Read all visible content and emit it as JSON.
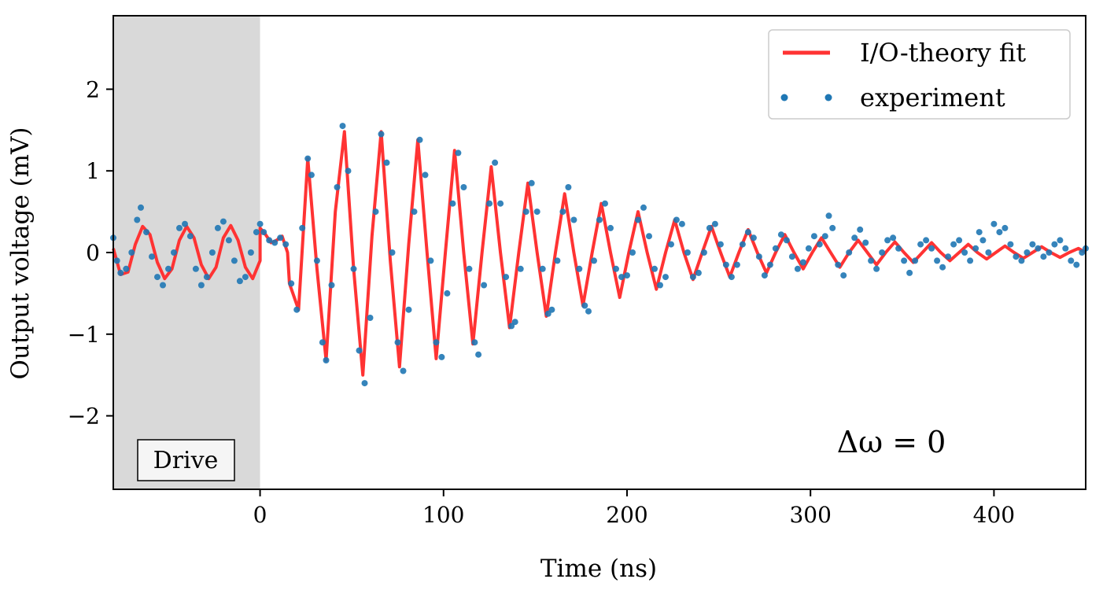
{
  "chart_data": {
    "type": "line",
    "title": "",
    "xlabel": "Time (ns)",
    "ylabel": "Output voltage (mV)",
    "xlim": [
      -80,
      450
    ],
    "ylim": [
      -2.9,
      2.9
    ],
    "xticks": [
      0,
      100,
      200,
      300,
      400
    ],
    "yticks": [
      -2,
      -1,
      0,
      1,
      2
    ],
    "grid": false,
    "legend_position": "top-right",
    "shaded_region": {
      "label": "Drive",
      "x_start": -80,
      "x_end": 0,
      "color": "#d9d9d9"
    },
    "annotation": {
      "text": "Δω = 0",
      "x": 365,
      "y": -2.3
    },
    "series": [
      {
        "name": "I/O-theory fit",
        "kind": "line",
        "color": "#ff3333",
        "points": [
          [
            -80,
            0.05
          ],
          [
            -76,
            -0.27
          ],
          [
            -72,
            -0.24
          ],
          [
            -68,
            0.1
          ],
          [
            -64,
            0.32
          ],
          [
            -60,
            0.22
          ],
          [
            -56,
            -0.12
          ],
          [
            -52,
            -0.32
          ],
          [
            -48,
            -0.2
          ],
          [
            -44,
            0.15
          ],
          [
            -40,
            0.32
          ],
          [
            -36,
            0.18
          ],
          [
            -32,
            -0.15
          ],
          [
            -28,
            -0.32
          ],
          [
            -24,
            -0.18
          ],
          [
            -20,
            0.18
          ],
          [
            -16,
            0.33
          ],
          [
            -12,
            0.15
          ],
          [
            -8,
            -0.18
          ],
          [
            -4,
            -0.32
          ],
          [
            0,
            -0.1
          ],
          [
            0,
            0.3
          ],
          [
            3,
            0.22
          ],
          [
            6,
            0.12
          ],
          [
            9,
            0.15
          ],
          [
            12,
            0.2
          ],
          [
            15,
            0.0
          ],
          [
            16,
            -0.38
          ],
          [
            21,
            -0.7
          ],
          [
            26,
            1.15
          ],
          [
            31,
            -0.2
          ],
          [
            36,
            -1.32
          ],
          [
            41,
            0.5
          ],
          [
            46,
            1.48
          ],
          [
            51,
            -0.2
          ],
          [
            56,
            -1.5
          ],
          [
            61,
            0.2
          ],
          [
            66,
            1.48
          ],
          [
            71,
            -0.1
          ],
          [
            76,
            -1.4
          ],
          [
            81,
            0.1
          ],
          [
            86,
            1.38
          ],
          [
            91,
            0.0
          ],
          [
            96,
            -1.3
          ],
          [
            101,
            0.0
          ],
          [
            106,
            1.25
          ],
          [
            111,
            0.0
          ],
          [
            116,
            -1.12
          ],
          [
            121,
            0.0
          ],
          [
            126,
            1.05
          ],
          [
            131,
            0.0
          ],
          [
            136,
            -0.92
          ],
          [
            141,
            0.0
          ],
          [
            146,
            0.85
          ],
          [
            151,
            0.0
          ],
          [
            156,
            -0.78
          ],
          [
            161,
            0.0
          ],
          [
            166,
            0.72
          ],
          [
            171,
            0.0
          ],
          [
            176,
            -0.65
          ],
          [
            181,
            0.0
          ],
          [
            186,
            0.6
          ],
          [
            191,
            0.0
          ],
          [
            196,
            -0.55
          ],
          [
            201,
            0.0
          ],
          [
            206,
            0.5
          ],
          [
            211,
            0.0
          ],
          [
            216,
            -0.45
          ],
          [
            221,
            0.0
          ],
          [
            226,
            0.4
          ],
          [
            231,
            0.0
          ],
          [
            236,
            -0.33
          ],
          [
            241,
            0.0
          ],
          [
            246,
            0.32
          ],
          [
            251,
            0.0
          ],
          [
            256,
            -0.3
          ],
          [
            261,
            0.0
          ],
          [
            266,
            0.28
          ],
          [
            271,
            0.0
          ],
          [
            276,
            -0.25
          ],
          [
            281,
            0.0
          ],
          [
            286,
            0.22
          ],
          [
            291,
            0.0
          ],
          [
            296,
            -0.2
          ],
          [
            301,
            0.0
          ],
          [
            306,
            0.18
          ],
          [
            311,
            0.0
          ],
          [
            316,
            -0.18
          ],
          [
            321,
            0.0
          ],
          [
            326,
            0.15
          ],
          [
            331,
            0.0
          ],
          [
            336,
            -0.15
          ],
          [
            341,
            0.0
          ],
          [
            346,
            0.13
          ],
          [
            351,
            0.0
          ],
          [
            356,
            -0.12
          ],
          [
            361,
            0.0
          ],
          [
            366,
            0.12
          ],
          [
            371,
            0.0
          ],
          [
            376,
            -0.1
          ],
          [
            381,
            0.0
          ],
          [
            386,
            0.1
          ],
          [
            391,
            0.0
          ],
          [
            396,
            -0.08
          ],
          [
            401,
            0.0
          ],
          [
            406,
            0.08
          ],
          [
            411,
            0.0
          ],
          [
            416,
            -0.07
          ],
          [
            421,
            0.0
          ],
          [
            426,
            0.07
          ],
          [
            431,
            0.0
          ],
          [
            436,
            -0.06
          ],
          [
            441,
            0.0
          ],
          [
            446,
            0.05
          ],
          [
            450,
            0.0
          ]
        ]
      },
      {
        "name": "experiment",
        "kind": "scatter",
        "color": "#1f77b4",
        "points": [
          [
            -80,
            0.18
          ],
          [
            -78,
            -0.1
          ],
          [
            -76,
            -0.25
          ],
          [
            -73,
            -0.2
          ],
          [
            -70,
            0.0
          ],
          [
            -67,
            0.4
          ],
          [
            -65,
            0.55
          ],
          [
            -62,
            0.25
          ],
          [
            -59,
            -0.05
          ],
          [
            -56,
            -0.3
          ],
          [
            -53,
            -0.4
          ],
          [
            -50,
            -0.2
          ],
          [
            -47,
            0.0
          ],
          [
            -44,
            0.3
          ],
          [
            -41,
            0.35
          ],
          [
            -38,
            0.2
          ],
          [
            -35,
            -0.2
          ],
          [
            -32,
            -0.4
          ],
          [
            -29,
            -0.3
          ],
          [
            -26,
            0.0
          ],
          [
            -23,
            0.3
          ],
          [
            -20,
            0.38
          ],
          [
            -17,
            0.15
          ],
          [
            -14,
            -0.1
          ],
          [
            -11,
            -0.35
          ],
          [
            -8,
            -0.3
          ],
          [
            -5,
            0.0
          ],
          [
            -2,
            0.25
          ],
          [
            0,
            0.35
          ],
          [
            2,
            0.25
          ],
          [
            5,
            0.15
          ],
          [
            8,
            0.12
          ],
          [
            11,
            0.18
          ],
          [
            14,
            0.1
          ],
          [
            17,
            -0.38
          ],
          [
            20,
            -0.7
          ],
          [
            23,
            0.3
          ],
          [
            26,
            1.15
          ],
          [
            28,
            0.95
          ],
          [
            31,
            -0.1
          ],
          [
            34,
            -1.1
          ],
          [
            36,
            -1.32
          ],
          [
            39,
            -0.4
          ],
          [
            42,
            0.8
          ],
          [
            45,
            1.55
          ],
          [
            48,
            1.0
          ],
          [
            51,
            -0.2
          ],
          [
            54,
            -1.2
          ],
          [
            57,
            -1.6
          ],
          [
            60,
            -0.8
          ],
          [
            63,
            0.5
          ],
          [
            66,
            1.45
          ],
          [
            69,
            1.1
          ],
          [
            72,
            0.0
          ],
          [
            75,
            -1.1
          ],
          [
            78,
            -1.45
          ],
          [
            81,
            -0.7
          ],
          [
            84,
            0.5
          ],
          [
            87,
            1.38
          ],
          [
            90,
            0.95
          ],
          [
            93,
            -0.1
          ],
          [
            96,
            -1.1
          ],
          [
            99,
            -1.28
          ],
          [
            102,
            -0.5
          ],
          [
            105,
            0.6
          ],
          [
            108,
            1.22
          ],
          [
            111,
            0.8
          ],
          [
            114,
            -0.2
          ],
          [
            117,
            -1.1
          ],
          [
            119,
            -1.25
          ],
          [
            122,
            -0.4
          ],
          [
            125,
            0.6
          ],
          [
            128,
            1.1
          ],
          [
            131,
            0.6
          ],
          [
            134,
            -0.3
          ],
          [
            137,
            -0.9
          ],
          [
            139,
            -0.85
          ],
          [
            142,
            -0.2
          ],
          [
            145,
            0.5
          ],
          [
            148,
            0.85
          ],
          [
            151,
            0.5
          ],
          [
            154,
            -0.2
          ],
          [
            157,
            -0.75
          ],
          [
            159,
            -0.7
          ],
          [
            162,
            -0.1
          ],
          [
            165,
            0.5
          ],
          [
            168,
            0.8
          ],
          [
            171,
            0.4
          ],
          [
            174,
            -0.2
          ],
          [
            177,
            -0.65
          ],
          [
            179,
            -0.72
          ],
          [
            182,
            -0.1
          ],
          [
            185,
            0.4
          ],
          [
            188,
            0.6
          ],
          [
            191,
            0.3
          ],
          [
            194,
            -0.2
          ],
          [
            197,
            -0.3
          ],
          [
            200,
            -0.28
          ],
          [
            203,
            0.0
          ],
          [
            206,
            0.4
          ],
          [
            209,
            0.55
          ],
          [
            212,
            0.2
          ],
          [
            215,
            -0.2
          ],
          [
            218,
            -0.4
          ],
          [
            221,
            -0.3
          ],
          [
            224,
            0.1
          ],
          [
            227,
            0.4
          ],
          [
            230,
            0.35
          ],
          [
            233,
            0.0
          ],
          [
            236,
            -0.3
          ],
          [
            239,
            -0.25
          ],
          [
            242,
            0.0
          ],
          [
            245,
            0.3
          ],
          [
            248,
            0.35
          ],
          [
            251,
            0.1
          ],
          [
            254,
            -0.15
          ],
          [
            257,
            -0.3
          ],
          [
            260,
            -0.15
          ],
          [
            263,
            0.1
          ],
          [
            266,
            0.25
          ],
          [
            269,
            0.18
          ],
          [
            272,
            -0.05
          ],
          [
            275,
            -0.28
          ],
          [
            278,
            -0.15
          ],
          [
            281,
            0.05
          ],
          [
            284,
            0.22
          ],
          [
            287,
            0.15
          ],
          [
            290,
            -0.05
          ],
          [
            293,
            -0.2
          ],
          [
            296,
            -0.12
          ],
          [
            299,
            0.05
          ],
          [
            302,
            0.2
          ],
          [
            305,
            0.1
          ],
          [
            308,
            0.2
          ],
          [
            310,
            0.45
          ],
          [
            312,
            0.3
          ],
          [
            315,
            -0.15
          ],
          [
            318,
            -0.28
          ],
          [
            321,
            0.0
          ],
          [
            324,
            0.18
          ],
          [
            327,
            0.28
          ],
          [
            330,
            0.12
          ],
          [
            333,
            -0.1
          ],
          [
            336,
            -0.2
          ],
          [
            339,
            0.0
          ],
          [
            342,
            0.15
          ],
          [
            345,
            0.18
          ],
          [
            348,
            0.05
          ],
          [
            351,
            -0.1
          ],
          [
            354,
            -0.25
          ],
          [
            357,
            -0.1
          ],
          [
            360,
            0.1
          ],
          [
            363,
            0.15
          ],
          [
            366,
            0.05
          ],
          [
            369,
            -0.1
          ],
          [
            372,
            -0.18
          ],
          [
            375,
            -0.05
          ],
          [
            378,
            0.1
          ],
          [
            381,
            0.15
          ],
          [
            384,
            0.0
          ],
          [
            387,
            -0.1
          ],
          [
            390,
            0.05
          ],
          [
            392,
            0.25
          ],
          [
            394,
            0.15
          ],
          [
            397,
            0.0
          ],
          [
            400,
            0.35
          ],
          [
            403,
            0.25
          ],
          [
            406,
            0.3
          ],
          [
            409,
            0.1
          ],
          [
            412,
            -0.05
          ],
          [
            415,
            -0.1
          ],
          [
            418,
            0.0
          ],
          [
            421,
            0.1
          ],
          [
            424,
            0.05
          ],
          [
            427,
            -0.05
          ],
          [
            430,
            0.0
          ],
          [
            433,
            0.1
          ],
          [
            436,
            0.15
          ],
          [
            439,
            0.05
          ],
          [
            442,
            -0.1
          ],
          [
            445,
            -0.15
          ],
          [
            448,
            0.0
          ],
          [
            450,
            0.05
          ]
        ]
      }
    ]
  }
}
